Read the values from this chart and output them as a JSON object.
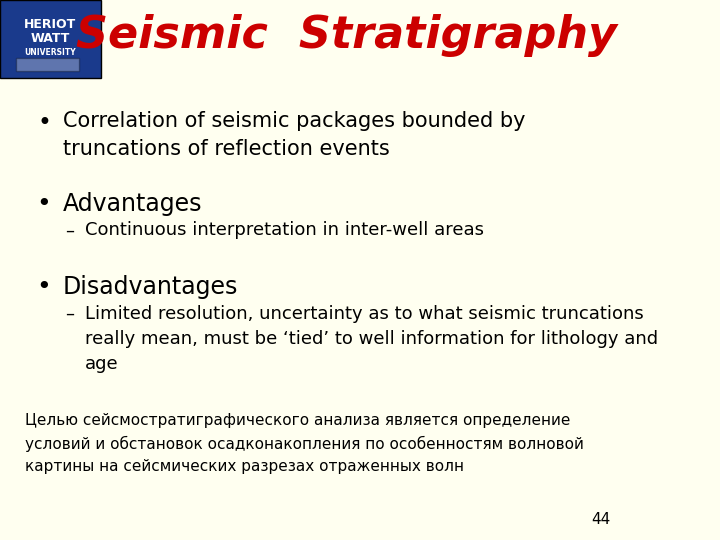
{
  "bg_color": "#FFFFF0",
  "title": "Seismic  Stratigraphy",
  "title_color": "#CC0000",
  "title_fontsize": 32,
  "title_font": "Impact",
  "logo_box_color": "#1a3a8c",
  "bullet1": "Correlation of seismic packages bounded by\ntruncations of reflection events",
  "bullet2_header": "Advantages",
  "bullet2_sub": "Continuous interpretation in inter-well areas",
  "bullet3_header": "Disadvantages",
  "bullet3_sub": "Limited resolution, uncertainty as to what seismic truncations\nreally mean, must be ‘tied’ to well information for lithology and\nage",
  "russian_text": "Целью сейсмостратиграфического анализа является определение\nусловий и обстановок осадконакопления по особенностям волновой\nкартины на сейсмических разрезах отраженных волн",
  "page_num": "44",
  "bullet_fontsize": 15,
  "sub_fontsize": 13,
  "russian_fontsize": 11,
  "main_text_color": "#000000",
  "header_fontsize": 17
}
